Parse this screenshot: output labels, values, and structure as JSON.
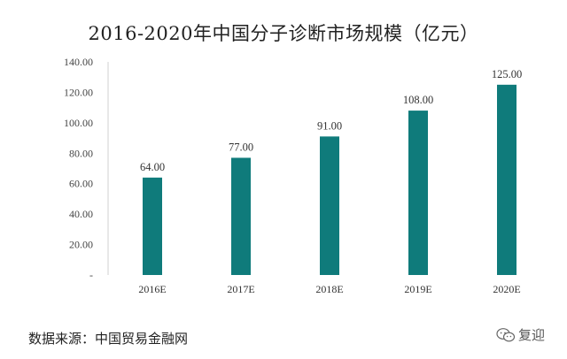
{
  "chart_data": {
    "type": "bar",
    "title": "2016-2020年中国分子诊断市场规模（亿元）",
    "categories": [
      "2016E",
      "2017E",
      "2018E",
      "2019E",
      "2020E"
    ],
    "values": [
      64.0,
      77.0,
      91.0,
      108.0,
      125.0
    ],
    "value_labels": [
      "64.00",
      "77.00",
      "91.00",
      "108.00",
      "125.00"
    ],
    "ylim": [
      0,
      140
    ],
    "yticks": [
      {
        "value": 0,
        "label": "-"
      },
      {
        "value": 20,
        "label": "20.00"
      },
      {
        "value": 40,
        "label": "40.00"
      },
      {
        "value": 60,
        "label": "60.00"
      },
      {
        "value": 80,
        "label": "80.00"
      },
      {
        "value": 100,
        "label": "100.00"
      },
      {
        "value": 120,
        "label": "120.00"
      },
      {
        "value": 140,
        "label": "140.00"
      }
    ],
    "bar_color": "#0f7b7b",
    "grid": false
  },
  "source": "数据来源：中国贸易金融网",
  "watermark": {
    "text": "复迎",
    "icon": "wechat-icon"
  }
}
